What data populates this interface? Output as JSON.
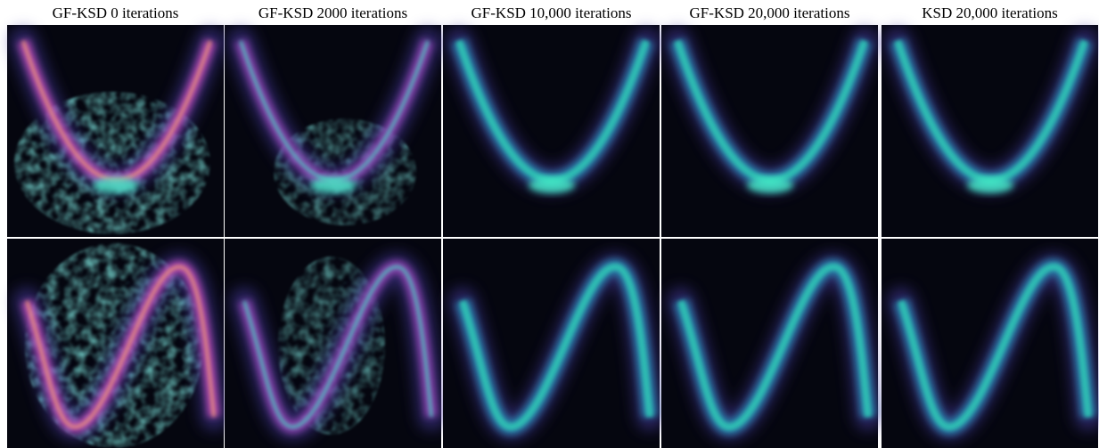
{
  "columns": [
    {
      "title": "GF-KSD 0 iterations"
    },
    {
      "title": "GF-KSD 2000 iterations"
    },
    {
      "title": "GF-KSD 10,000 iterations"
    },
    {
      "title": "GF-KSD 20,000 iterations"
    },
    {
      "title": "KSD 20,000 iterations"
    }
  ]
}
